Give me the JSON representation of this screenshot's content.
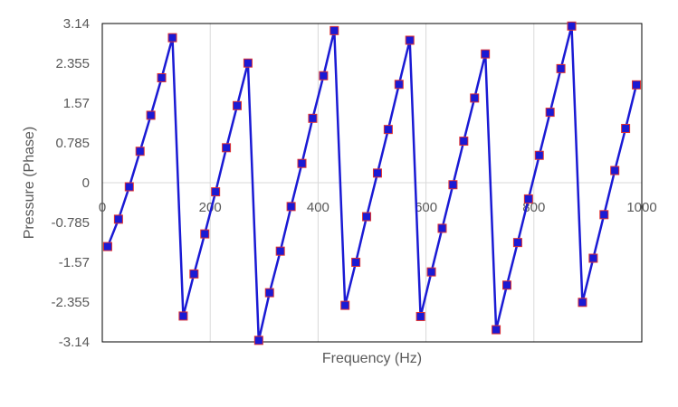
{
  "chart_data": {
    "type": "line",
    "xlabel": "Frequency (Hz)",
    "ylabel": "Pressure (Phase)",
    "xlim": [
      0,
      1000
    ],
    "ylim": [
      -3.14,
      3.14
    ],
    "x_ticks": [
      0,
      200,
      400,
      600,
      800,
      1000
    ],
    "x_tick_labels": [
      "0",
      "200",
      "400",
      "600",
      "800",
      "1000"
    ],
    "y_ticks": [
      3.14,
      2.355,
      1.57,
      0.785,
      0,
      -0.785,
      -1.57,
      -2.355,
      -3.14
    ],
    "y_tick_labels": [
      "3.14",
      "2.355",
      "1.57",
      "0.785",
      "0",
      "-0.785",
      "-1.57",
      "-2.355",
      "-3.14"
    ],
    "grid": {
      "vertical": true,
      "horizontal": false
    },
    "series": [
      {
        "color": "#1a1ad4",
        "marker_fill": "#1a1ad4",
        "marker_edge": "#e03030",
        "x": [
          10,
          30,
          50,
          70,
          90,
          110,
          130,
          150,
          170,
          190,
          210,
          230,
          250,
          270,
          290,
          310,
          330,
          350,
          370,
          390,
          410,
          430,
          450,
          470,
          490,
          510,
          530,
          550,
          570,
          590,
          610,
          630,
          650,
          670,
          690,
          710,
          730,
          750,
          770,
          790,
          810,
          830,
          850,
          870,
          890,
          910,
          930,
          950,
          970,
          990
        ],
        "y": [
          -1.26,
          -0.72,
          -0.08,
          0.62,
          1.33,
          2.07,
          2.86,
          -2.63,
          -1.8,
          -1.01,
          -0.18,
          0.69,
          1.52,
          2.36,
          -3.11,
          -2.17,
          -1.35,
          -0.47,
          0.38,
          1.27,
          2.11,
          3.0,
          -2.42,
          -1.57,
          -0.67,
          0.19,
          1.05,
          1.94,
          2.81,
          -2.64,
          -1.76,
          -0.9,
          -0.04,
          0.82,
          1.67,
          2.54,
          -2.9,
          -2.02,
          -1.18,
          -0.32,
          0.54,
          1.39,
          2.25,
          3.09,
          -2.36,
          -1.49,
          -0.63,
          0.24,
          1.07,
          1.93
        ]
      }
    ]
  }
}
